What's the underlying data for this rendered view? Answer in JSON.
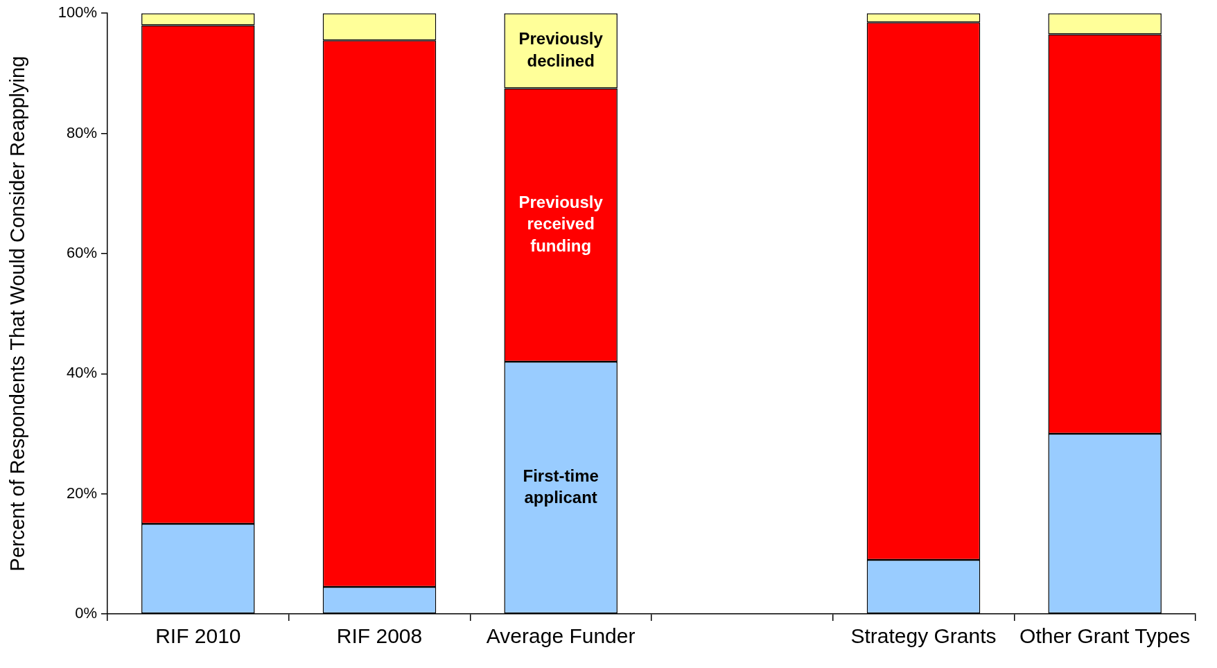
{
  "chart_data": {
    "type": "bar",
    "stacked": true,
    "ylabel": "Percent of Respondents That Would Consider Reapplying",
    "categories": [
      "RIF 2010",
      "RIF 2008",
      "Average Funder",
      null,
      "Strategy Grants",
      "Other Grant Types"
    ],
    "series": [
      {
        "name": "First-time applicant",
        "color": "#99ccff",
        "values": [
          15,
          4.5,
          42,
          null,
          9,
          30
        ]
      },
      {
        "name": "Previously received funding",
        "color": "#ff0000",
        "values": [
          83,
          91,
          45.5,
          null,
          89.5,
          66.5
        ]
      },
      {
        "name": "Previously declined",
        "color": "#ffff99",
        "values": [
          2,
          4.5,
          12.5,
          null,
          1.5,
          3.5
        ]
      }
    ],
    "ylim": [
      0,
      100
    ],
    "yticks": [
      {
        "value": 0,
        "label": "0%"
      },
      {
        "value": 20,
        "label": "20%"
      },
      {
        "value": 40,
        "label": "40%"
      },
      {
        "value": 60,
        "label": "60%"
      },
      {
        "value": 80,
        "label": "80%"
      },
      {
        "value": 100,
        "label": "100%"
      }
    ]
  }
}
